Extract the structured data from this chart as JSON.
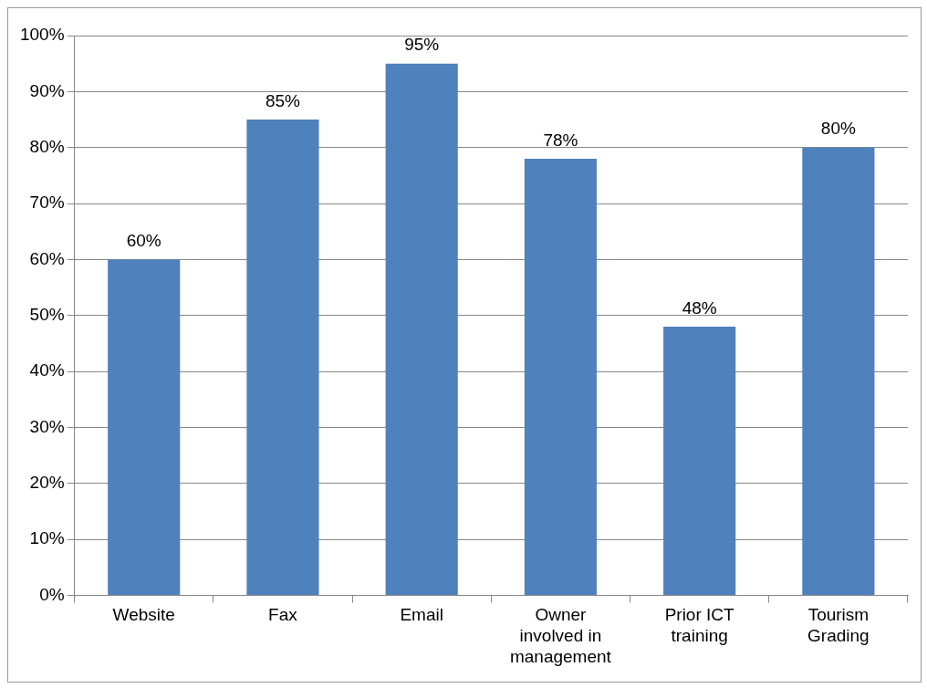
{
  "chart_data": {
    "type": "bar",
    "categories": [
      "Website",
      "Fax",
      "Email",
      "Owner involved in management",
      "Prior ICT training",
      "Tourism Grading"
    ],
    "values": [
      60,
      85,
      95,
      78,
      48,
      80
    ],
    "value_labels": [
      "60%",
      "85%",
      "95%",
      "78%",
      "48%",
      "80%"
    ],
    "color": "#4f81bd",
    "ylim": [
      0,
      100
    ],
    "yticks": [
      {
        "value": 0,
        "label": "0%"
      },
      {
        "value": 10,
        "label": "10%"
      },
      {
        "value": 20,
        "label": "20%"
      },
      {
        "value": 30,
        "label": "30%"
      },
      {
        "value": 40,
        "label": "40%"
      },
      {
        "value": 50,
        "label": "50%"
      },
      {
        "value": 60,
        "label": "60%"
      },
      {
        "value": 70,
        "label": "70%"
      },
      {
        "value": 80,
        "label": "80%"
      },
      {
        "value": 90,
        "label": "90%"
      },
      {
        "value": 100,
        "label": "100%"
      }
    ],
    "grid": "y",
    "legend": false
  }
}
